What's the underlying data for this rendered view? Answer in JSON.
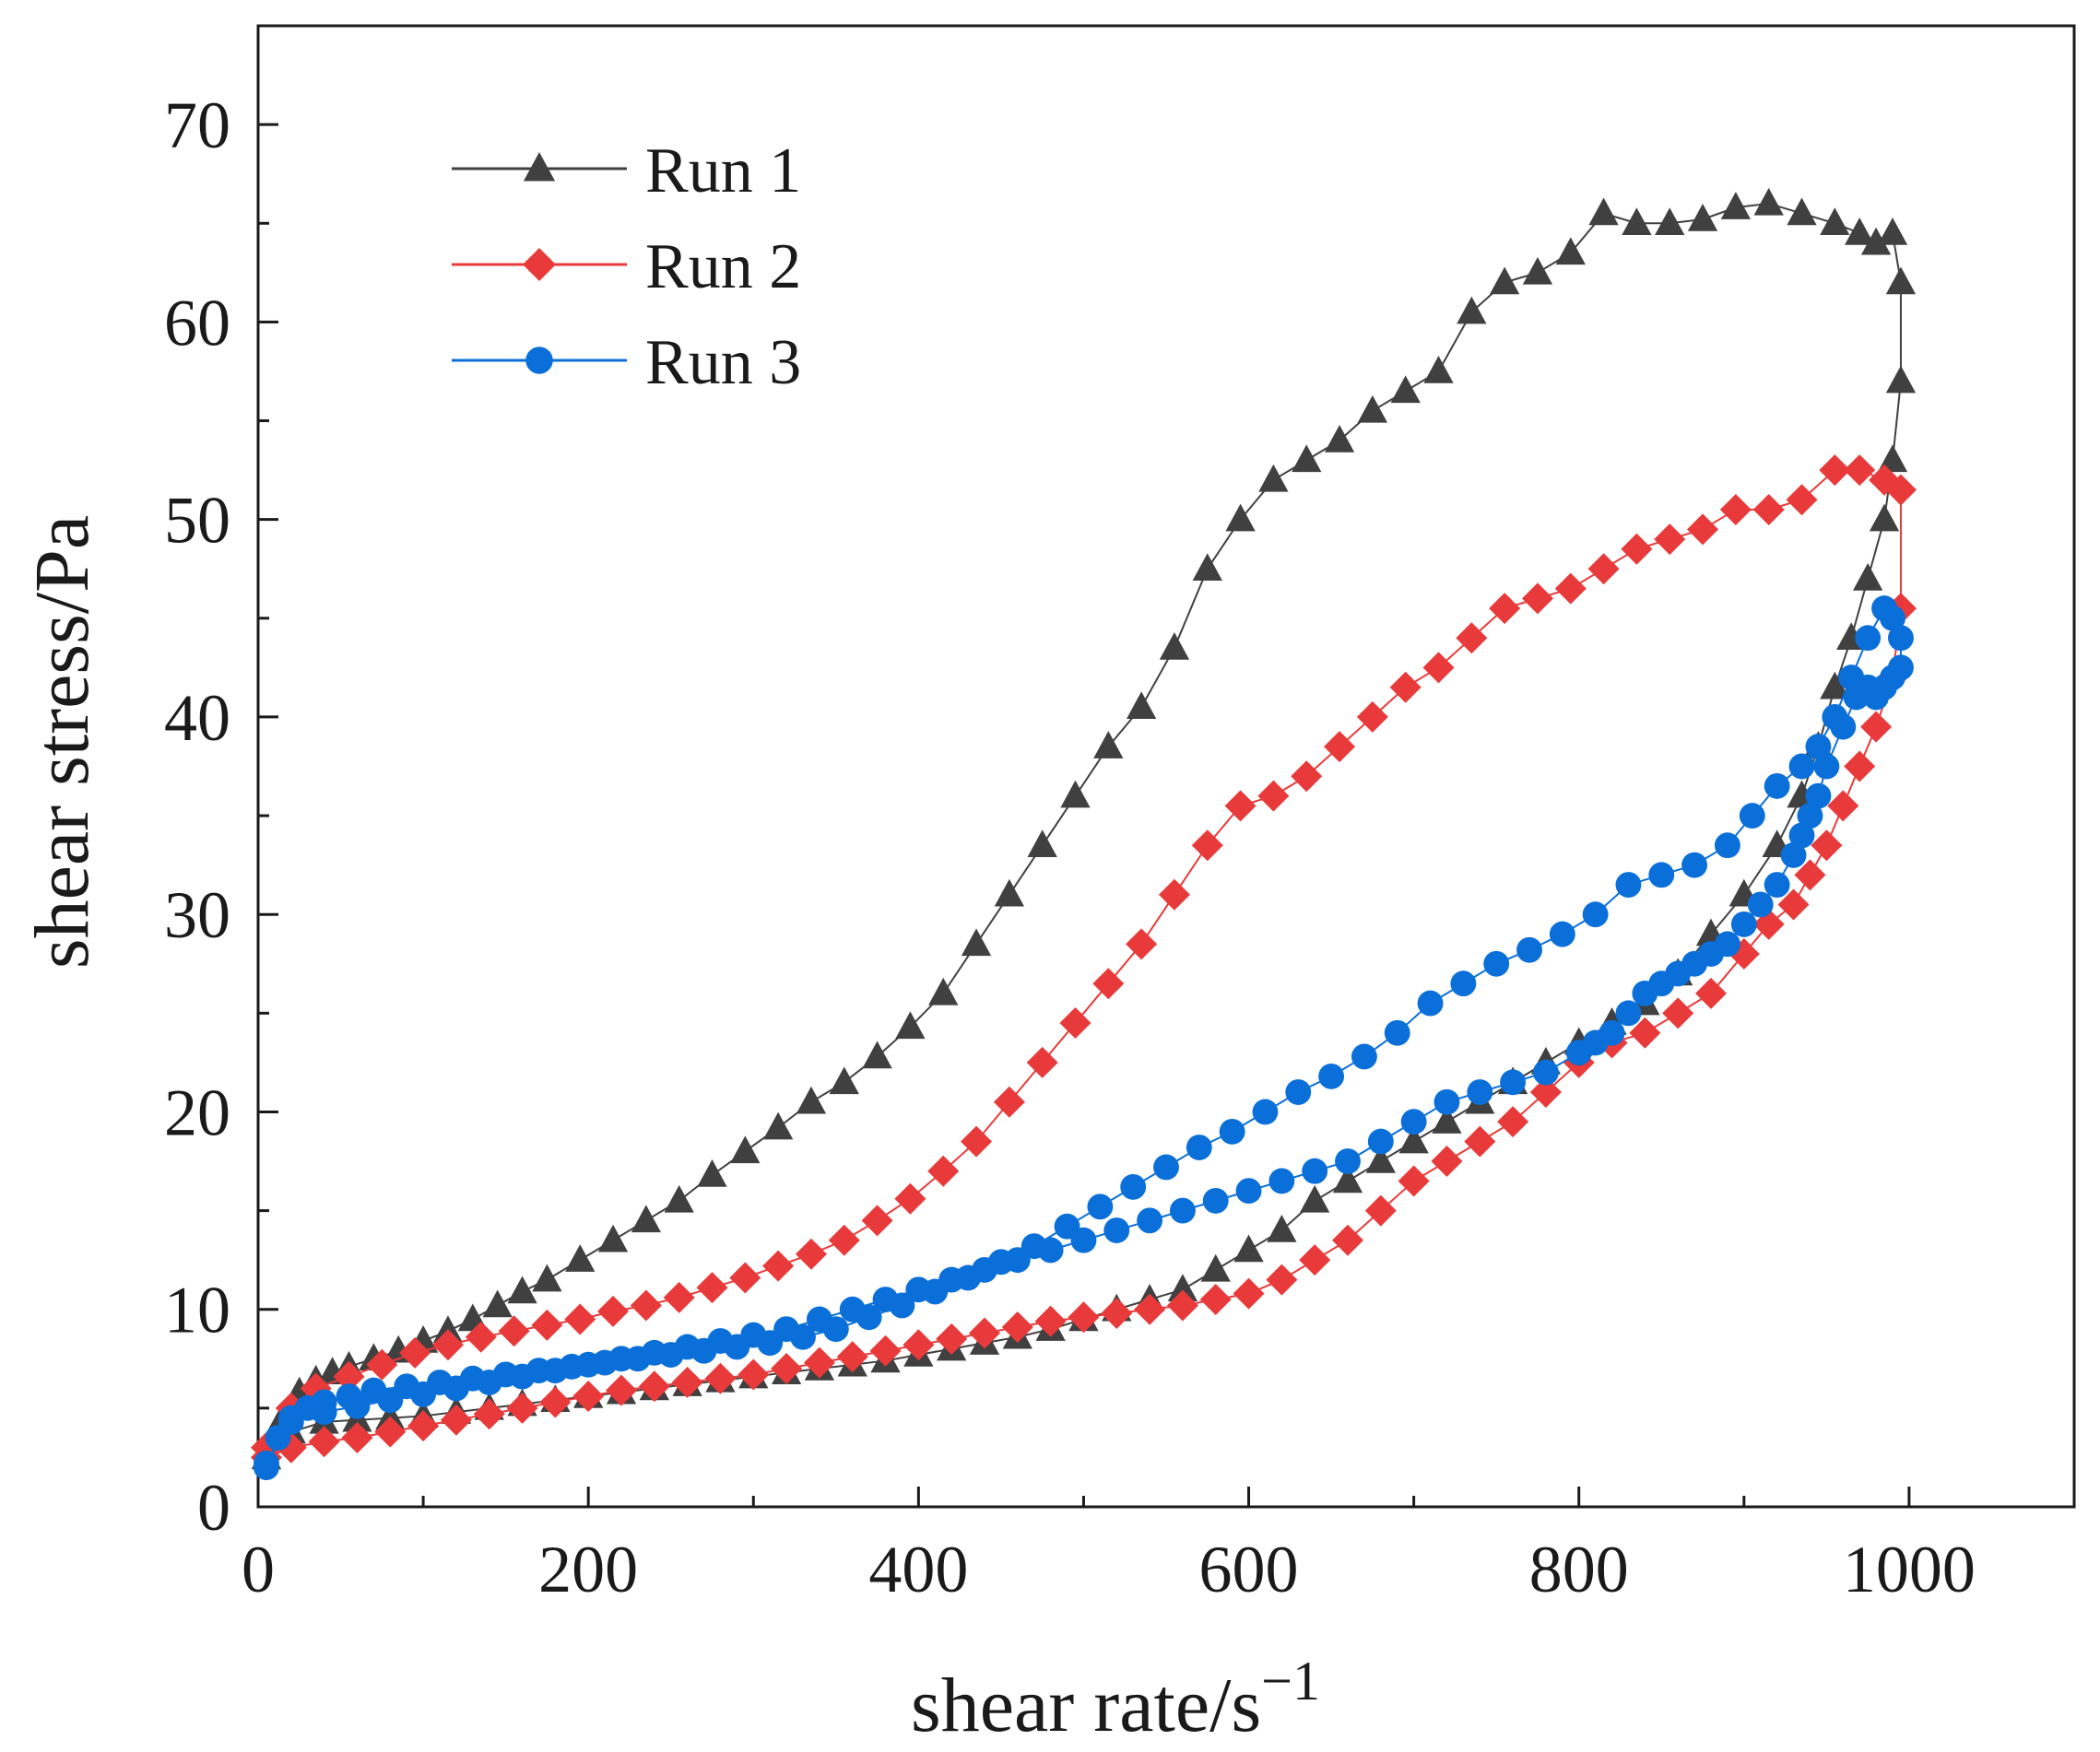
{
  "chart_data": {
    "type": "scatter",
    "xlabel": "shear rate/s",
    "xlabel_superscript": "−1",
    "ylabel": "shear stress/Pa",
    "xlim": [
      0,
      1100
    ],
    "ylim": [
      0,
      75
    ],
    "x_ticks": [
      0,
      200,
      400,
      600,
      800,
      1000
    ],
    "y_ticks": [
      0,
      10,
      20,
      30,
      40,
      50,
      60,
      70
    ],
    "x_tick_labels": [
      "0",
      "200",
      "400",
      "600",
      "800",
      "1000"
    ],
    "y_tick_labels": [
      "0",
      "10",
      "20",
      "30",
      "40",
      "50",
      "60",
      "70"
    ],
    "grid": false,
    "legend_position": "top-left",
    "series": [
      {
        "name": "Run 1",
        "color": "#404040",
        "marker": "triangle",
        "x": [
          5,
          15,
          25,
          35,
          45,
          55,
          70,
          85,
          100,
          115,
          130,
          145,
          160,
          175,
          195,
          215,
          235,
          255,
          275,
          295,
          315,
          335,
          355,
          375,
          395,
          415,
          435,
          455,
          475,
          495,
          515,
          535,
          555,
          575,
          595,
          615,
          635,
          655,
          675,
          695,
          715,
          735,
          755,
          775,
          795,
          815,
          835,
          855,
          875,
          895,
          915,
          935,
          955,
          970,
          980,
          990,
          995,
          995,
          990,
          985,
          975,
          965,
          955,
          945,
          935,
          920,
          900,
          880,
          860,
          840,
          820,
          800,
          780,
          760,
          740,
          720,
          700,
          680,
          660,
          640,
          620,
          600,
          580,
          560,
          540,
          520,
          500,
          480,
          460,
          440,
          420,
          400,
          380,
          360,
          340,
          320,
          300,
          280,
          260,
          240,
          220,
          200,
          180,
          160,
          140,
          120,
          100,
          80,
          60,
          40,
          20,
          5
        ],
        "y": [
          2.5,
          4.5,
          5.8,
          6.4,
          6.8,
          7.1,
          7.5,
          7.9,
          8.4,
          8.9,
          9.5,
          10.2,
          10.9,
          11.5,
          12.5,
          13.5,
          14.5,
          15.5,
          16.8,
          18.0,
          19.2,
          20.5,
          21.5,
          22.8,
          24.3,
          26.0,
          28.5,
          31.0,
          33.5,
          36.0,
          38.5,
          40.5,
          43.5,
          47.5,
          50.0,
          52.0,
          53.0,
          54.0,
          55.5,
          56.5,
          57.5,
          60.5,
          62.0,
          62.5,
          63.5,
          65.5,
          65.0,
          65.0,
          65.2,
          65.8,
          66.0,
          65.5,
          65.0,
          64.5,
          64.0,
          64.5,
          62.0,
          57.0,
          53.0,
          50.0,
          47.0,
          44.0,
          41.5,
          38.5,
          36.0,
          33.5,
          31.0,
          29.0,
          27.0,
          25.5,
          24.5,
          23.5,
          22.5,
          21.5,
          20.5,
          19.5,
          18.5,
          17.5,
          16.5,
          15.5,
          14.0,
          13.0,
          12.0,
          11.0,
          10.5,
          10.0,
          9.5,
          9.0,
          8.6,
          8.3,
          8.0,
          7.7,
          7.4,
          7.2,
          7.0,
          6.8,
          6.6,
          6.4,
          6.2,
          6.0,
          5.8,
          5.6,
          5.4,
          5.2,
          5.0,
          4.8,
          4.6,
          4.5,
          4.4,
          4.3,
          3.8,
          2.5
        ]
      },
      {
        "name": "Run 2",
        "color": "#e83a3a",
        "marker": "diamond",
        "x": [
          5,
          20,
          35,
          55,
          75,
          95,
          115,
          135,
          155,
          175,
          195,
          215,
          235,
          255,
          275,
          295,
          315,
          335,
          355,
          375,
          395,
          415,
          435,
          455,
          475,
          495,
          515,
          535,
          555,
          575,
          595,
          615,
          635,
          655,
          675,
          695,
          715,
          735,
          755,
          775,
          795,
          815,
          835,
          855,
          875,
          895,
          915,
          935,
          955,
          970,
          985,
          995,
          995,
          990,
          980,
          970,
          960,
          950,
          940,
          930,
          915,
          900,
          880,
          860,
          840,
          820,
          800,
          780,
          760,
          740,
          720,
          700,
          680,
          660,
          640,
          620,
          600,
          580,
          560,
          540,
          520,
          500,
          480,
          460,
          440,
          420,
          400,
          380,
          360,
          340,
          320,
          300,
          280,
          260,
          240,
          220,
          200,
          180,
          160,
          140,
          120,
          100,
          80,
          60,
          40,
          20,
          5
        ],
        "y": [
          3.0,
          5.0,
          6.0,
          6.6,
          7.2,
          7.8,
          8.2,
          8.6,
          8.9,
          9.2,
          9.5,
          9.9,
          10.2,
          10.6,
          11.1,
          11.6,
          12.2,
          12.8,
          13.5,
          14.5,
          15.6,
          17.0,
          18.5,
          20.5,
          22.5,
          24.5,
          26.5,
          28.5,
          31.0,
          33.5,
          35.5,
          36.0,
          37.0,
          38.5,
          40.0,
          41.5,
          42.5,
          44.0,
          45.5,
          46.0,
          46.5,
          47.5,
          48.5,
          49.0,
          49.5,
          50.5,
          50.5,
          51.0,
          52.5,
          52.5,
          52.0,
          51.5,
          45.5,
          42.0,
          39.5,
          37.5,
          35.5,
          33.5,
          32.0,
          30.5,
          29.5,
          28.0,
          26.0,
          25.0,
          24.0,
          23.5,
          22.5,
          21.0,
          19.5,
          18.5,
          17.5,
          16.5,
          15.0,
          13.5,
          12.5,
          11.5,
          10.8,
          10.5,
          10.2,
          10.0,
          9.8,
          9.6,
          9.4,
          9.1,
          8.8,
          8.5,
          8.2,
          7.9,
          7.6,
          7.3,
          7.0,
          6.7,
          6.5,
          6.3,
          6.1,
          5.9,
          5.6,
          5.3,
          5.0,
          4.7,
          4.4,
          4.1,
          3.8,
          3.5,
          3.3,
          3.0,
          2.5
        ]
      },
      {
        "name": "Run 3",
        "color": "#0a6fd8",
        "marker": "circle",
        "x": [
          5,
          12,
          20,
          30,
          40,
          55,
          70,
          90,
          110,
          130,
          150,
          170,
          190,
          210,
          230,
          250,
          270,
          290,
          310,
          330,
          350,
          370,
          390,
          410,
          430,
          450,
          470,
          490,
          510,
          530,
          550,
          570,
          590,
          610,
          630,
          650,
          670,
          690,
          710,
          730,
          750,
          770,
          790,
          810,
          830,
          850,
          870,
          890,
          905,
          920,
          935,
          945,
          955,
          965,
          975,
          985,
          990,
          995,
          995,
          990,
          985,
          980,
          975,
          968,
          960,
          950,
          945,
          940,
          935,
          930,
          920,
          910,
          900,
          890,
          880,
          870,
          860,
          850,
          840,
          830,
          820,
          810,
          800,
          780,
          760,
          740,
          720,
          700,
          680,
          660,
          640,
          620,
          600,
          580,
          560,
          540,
          520,
          500,
          480,
          460,
          440,
          420,
          400,
          380,
          360,
          340,
          320,
          300,
          280,
          260,
          240,
          220,
          200,
          180,
          160,
          140,
          120,
          100,
          80,
          60,
          40,
          20,
          5
        ],
        "y": [
          2.0,
          3.5,
          4.5,
          5.0,
          5.3,
          5.6,
          5.9,
          6.1,
          6.3,
          6.5,
          6.7,
          6.9,
          7.1,
          7.3,
          7.5,
          7.7,
          7.9,
          8.1,
          8.3,
          8.6,
          9.0,
          9.6,
          10.2,
          10.9,
          11.6,
          12.4,
          13.2,
          14.2,
          15.2,
          16.2,
          17.2,
          18.2,
          19.0,
          20.0,
          21.0,
          21.8,
          22.8,
          24.0,
          25.5,
          26.5,
          27.5,
          28.2,
          29.0,
          30.0,
          31.5,
          32.0,
          32.5,
          33.5,
          35.0,
          36.5,
          37.5,
          38.5,
          40.0,
          42.0,
          44.0,
          45.5,
          45.0,
          44.0,
          42.5,
          42.0,
          41.5,
          41.0,
          41.5,
          41.0,
          39.5,
          37.5,
          36.0,
          35.0,
          34.0,
          33.0,
          31.5,
          30.5,
          29.5,
          28.5,
          28.0,
          27.5,
          27.0,
          26.5,
          26.0,
          25.0,
          24.0,
          23.5,
          23.0,
          22.0,
          21.5,
          21.0,
          20.5,
          19.5,
          18.5,
          17.5,
          17.0,
          16.5,
          16.0,
          15.5,
          15.0,
          14.5,
          14.0,
          13.5,
          13.0,
          12.5,
          12.0,
          11.5,
          11.0,
          10.5,
          10.0,
          9.5,
          9.0,
          8.7,
          8.4,
          8.1,
          7.8,
          7.5,
          7.2,
          6.9,
          6.6,
          6.3,
          6.0,
          5.7,
          5.4,
          5.1,
          4.8,
          4.3,
          2.2
        ]
      }
    ]
  }
}
